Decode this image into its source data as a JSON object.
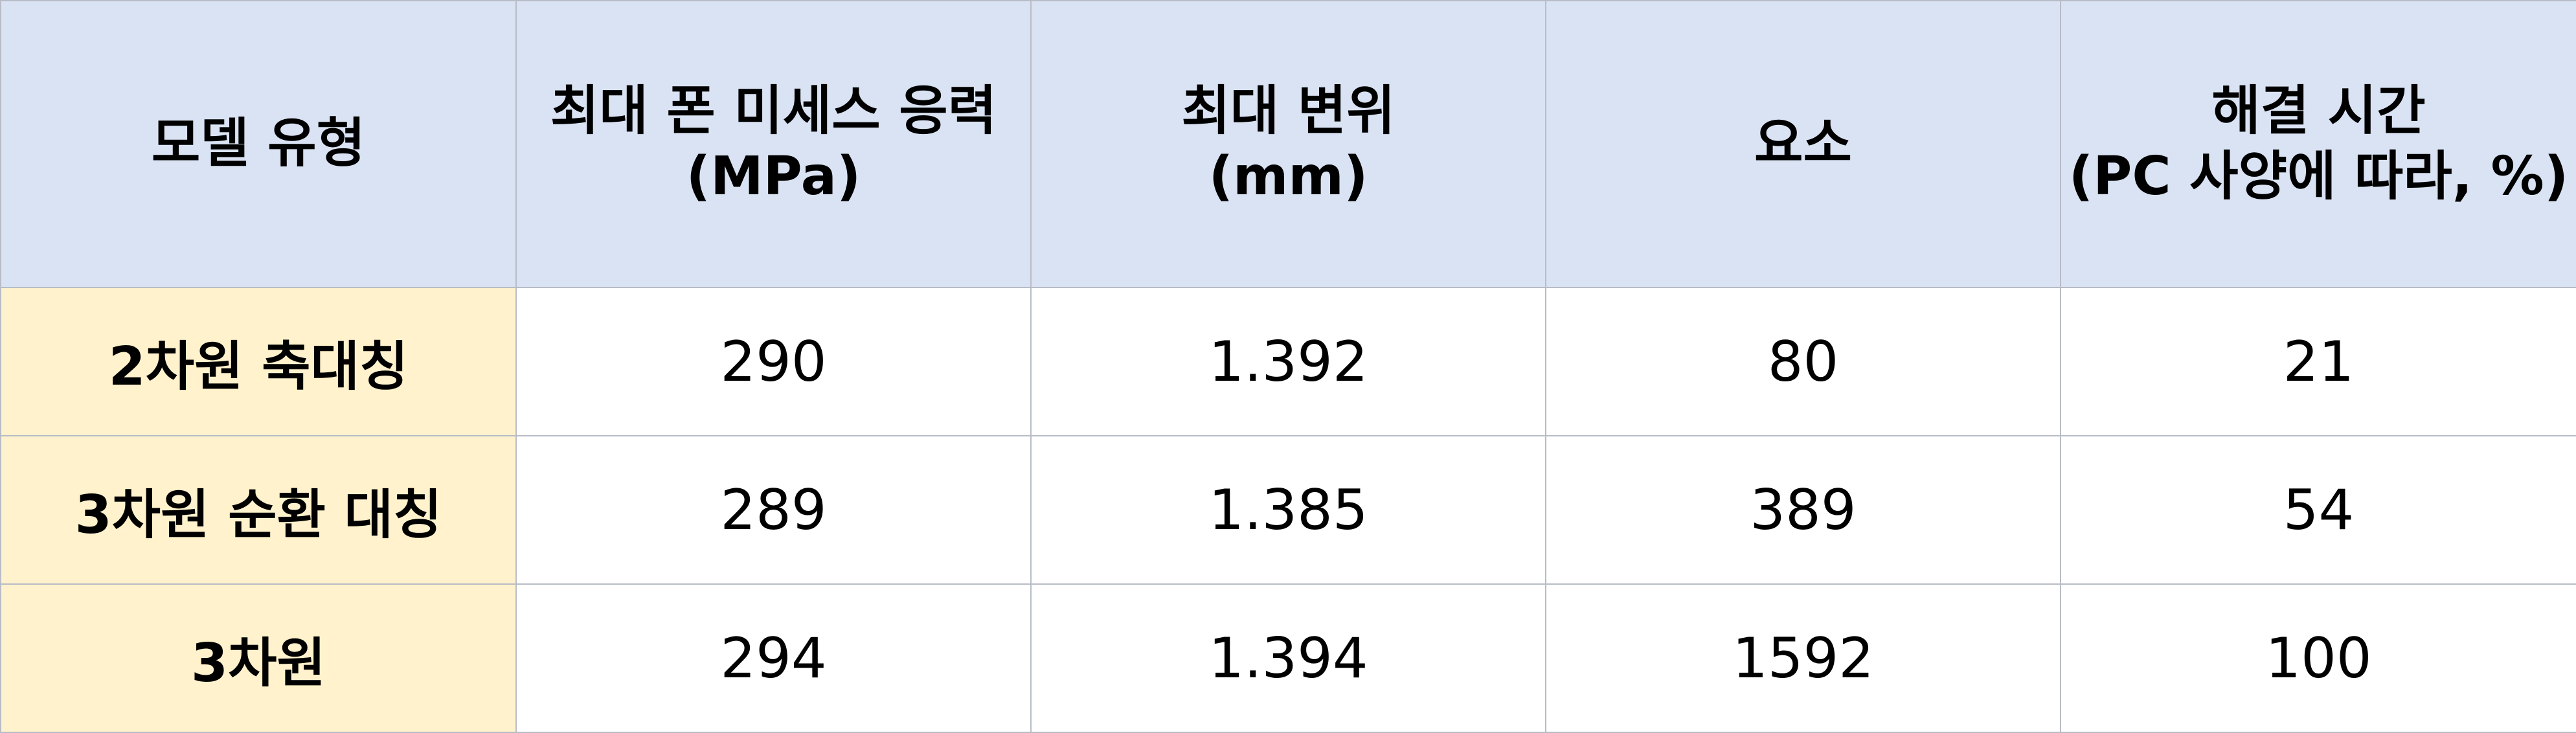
{
  "table": {
    "header": {
      "model_type": "모델 유형",
      "max_von_mises_l1": "최대 폰 미세스 응력",
      "max_von_mises_l2": "(MPa)",
      "max_displacement_l1": "최대 변위",
      "max_displacement_l2": "(mm)",
      "elements": "요소",
      "solve_time_l1": "해결 시간",
      "solve_time_l2": "(PC 사양에 따라, %)"
    },
    "rows": [
      {
        "model": "2차원 축대칭",
        "stress": "290",
        "displacement": "1.392",
        "elements": "80",
        "time": "21"
      },
      {
        "model": "3차원 순환 대칭",
        "stress": "289",
        "displacement": "1.385",
        "elements": "389",
        "time": "54"
      },
      {
        "model": "3차원",
        "stress": "294",
        "displacement": "1.394",
        "elements": "1592",
        "time": "100"
      }
    ]
  }
}
